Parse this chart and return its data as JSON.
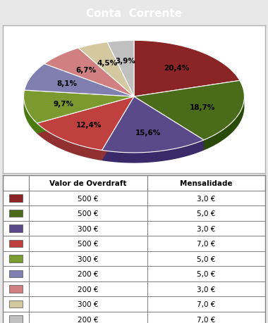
{
  "title": "Conta  Corrente",
  "title_bg": "#808080",
  "title_color": "white",
  "slices": [
    20.4,
    18.7,
    15.6,
    12.4,
    9.7,
    8.1,
    6.7,
    4.5,
    3.9
  ],
  "labels": [
    "20,4%",
    "18,7%",
    "15,6%",
    "12,4%",
    "9,7%",
    "8,1%",
    "6,7%",
    "4,5%",
    "3,9%"
  ],
  "colors": [
    "#8B2525",
    "#4A6B1A",
    "#5B4A8A",
    "#C04040",
    "#7A9A30",
    "#8080B0",
    "#D08080",
    "#D4C8A0",
    "#C0C0C0"
  ],
  "shadow_colors": [
    "#5A1515",
    "#2A4A0A",
    "#3B2A6A",
    "#903030",
    "#4A7A10",
    "#505090",
    "#A06060",
    "#A4A880",
    "#909090"
  ],
  "table_headers": [
    "",
    "Valor de Overdraft",
    "Mensalidade"
  ],
  "table_colors": [
    "#8B2525",
    "#4A6B1A",
    "#5B4A8A",
    "#C04040",
    "#7A9A30",
    "#8080B0",
    "#D08080",
    "#D4C8A0",
    "#C0C0C0"
  ],
  "overdraft": [
    "500 €",
    "500 €",
    "300 €",
    "500 €",
    "300 €",
    "200 €",
    "200 €",
    "300 €",
    "200 €"
  ],
  "mensalidade": [
    "3,0 €",
    "5,0 €",
    "3,0 €",
    "7,0 €",
    "5,0 €",
    "5,0 €",
    "3,0 €",
    "7,0 €",
    "7,0 €"
  ],
  "fig_width": 3.8,
  "fig_height": 4.6,
  "dpi": 100
}
